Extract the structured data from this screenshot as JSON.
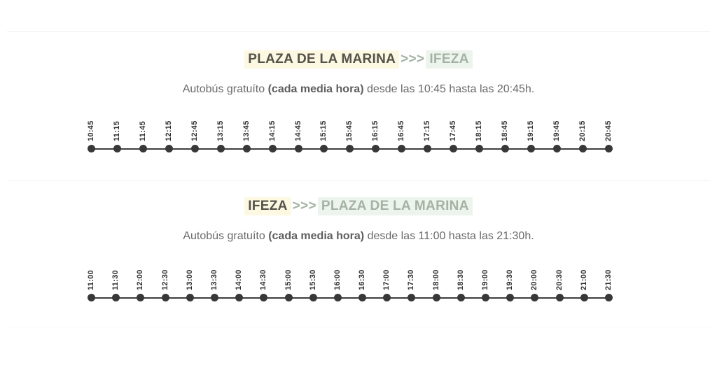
{
  "colors": {
    "highlight_yellow": "#fcf8e1",
    "highlight_green": "#edf3ed",
    "sage_green_text": "#a3b3a3",
    "heading_dark_text": "#54524a",
    "body_gray_text": "#6a6a6a",
    "dot_color": "#383838"
  },
  "sections": [
    {
      "title": {
        "from": "PLAZA DE LA MARINA",
        "arrow": ">>>",
        "to": "IFEZA"
      },
      "subtitle": {
        "pre": "Autobús gratuíto ",
        "bold": "(cada media hora)",
        "post": " desde las 10:45 hasta las 20:45h."
      },
      "times": [
        "10:45",
        "11:15",
        "11:45",
        "12:15",
        "12:45",
        "13:15",
        "13:45",
        "14:15",
        "14:45",
        "15:15",
        "15:45",
        "16:15",
        "16:45",
        "17:15",
        "17:45",
        "18:15",
        "18:45",
        "19:15",
        "19:45",
        "20:15",
        "20:45"
      ]
    },
    {
      "title": {
        "from": "IFEZA",
        "arrow": ">>>",
        "to": "PLAZA DE LA MARINA"
      },
      "subtitle": {
        "pre": "Autobús gratuíto ",
        "bold": "(cada media hora)",
        "post": " desde las 11:00 hasta las 21:30h."
      },
      "times": [
        "11:00",
        "11:30",
        "12:00",
        "12:30",
        "13:00",
        "13:30",
        "14:00",
        "14:30",
        "15:00",
        "15:30",
        "16:00",
        "16:30",
        "17:00",
        "17:30",
        "18:00",
        "18:30",
        "19:00",
        "19:30",
        "20:00",
        "20:30",
        "21:00",
        "21:30"
      ]
    }
  ]
}
